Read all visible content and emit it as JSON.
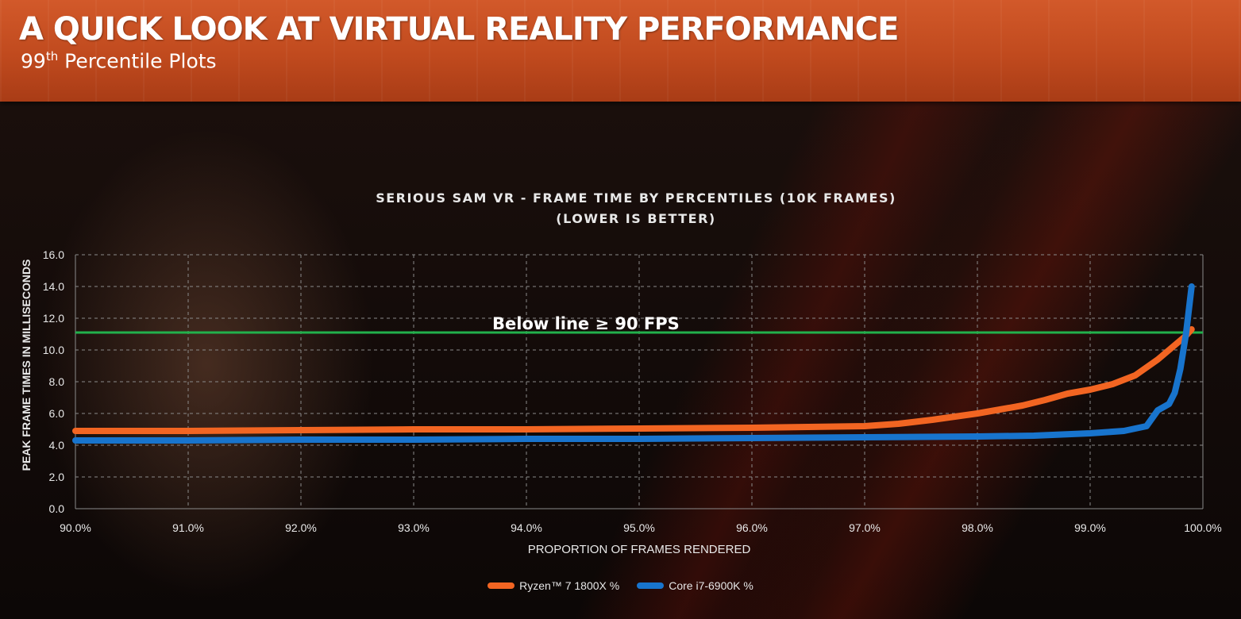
{
  "header": {
    "title": "A QUICK LOOK AT VIRTUAL REALITY PERFORMANCE",
    "subtitle_main": "99",
    "subtitle_sup": "th",
    "subtitle_rest": " Percentile Plots"
  },
  "colors": {
    "ryzen": "#f26522",
    "intel": "#1874cd",
    "threshold": "#22b14c",
    "grid": "#8a8a8a",
    "text": "#e8e8e8"
  },
  "chart_data": {
    "type": "line",
    "title": "SERIOUS SAM VR - FRAME  TIME BY PERCENTILES (10K FRAMES)",
    "subtitle": "(LOWER IS BETTER)",
    "xlabel": "PROPORTION OF FRAMES RENDERED",
    "ylabel": "PEAK FRAME TIMES IN MILLISECONDS",
    "xlim": [
      90,
      100
    ],
    "ylim": [
      0,
      16
    ],
    "x_ticks": [
      "90.0%",
      "91.0%",
      "92.0%",
      "93.0%",
      "94.0%",
      "95.0%",
      "96.0%",
      "97.0%",
      "98.0%",
      "99.0%",
      "100.0%"
    ],
    "y_ticks": [
      "0.0",
      "2.0",
      "4.0",
      "6.0",
      "8.0",
      "10.0",
      "12.0",
      "14.0",
      "16.0"
    ],
    "grid": true,
    "annotation": {
      "text": "Below line ≥ 90 FPS",
      "y": 11.1
    },
    "series": [
      {
        "name": "Ryzen™ 7 1800X %",
        "x": [
          90.0,
          91.0,
          92.0,
          93.0,
          94.0,
          95.0,
          96.0,
          96.5,
          97.0,
          97.3,
          97.6,
          97.8,
          98.0,
          98.2,
          98.4,
          98.6,
          98.8,
          99.0,
          99.2,
          99.4,
          99.6,
          99.75,
          99.85,
          99.9
        ],
        "values": [
          4.9,
          4.9,
          4.95,
          5.0,
          5.0,
          5.05,
          5.1,
          5.15,
          5.2,
          5.35,
          5.6,
          5.8,
          6.0,
          6.25,
          6.5,
          6.85,
          7.25,
          7.5,
          7.85,
          8.4,
          9.4,
          10.3,
          10.9,
          11.3
        ]
      },
      {
        "name": "Core i7-6900K %",
        "x": [
          90.0,
          91.0,
          92.0,
          93.0,
          94.0,
          95.0,
          96.0,
          97.0,
          98.0,
          98.5,
          99.0,
          99.3,
          99.5,
          99.6,
          99.7,
          99.75,
          99.8,
          99.85,
          99.9
        ],
        "values": [
          4.3,
          4.3,
          4.35,
          4.35,
          4.4,
          4.4,
          4.45,
          4.5,
          4.55,
          4.6,
          4.75,
          4.9,
          5.2,
          6.2,
          6.6,
          7.3,
          8.8,
          11.0,
          14.0
        ]
      }
    ]
  }
}
